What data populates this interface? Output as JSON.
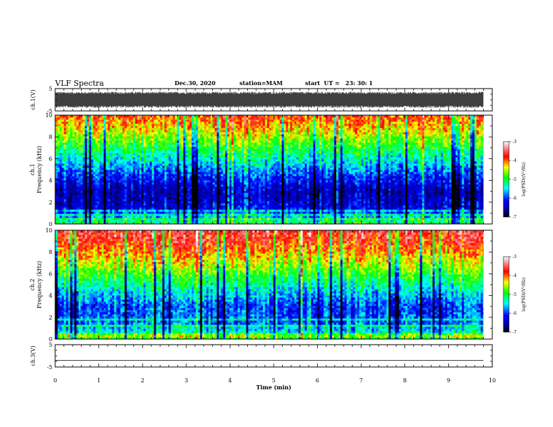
{
  "header": {
    "title": "VLF Spectra",
    "date": "Dec.30, 2020",
    "station": "station=MAM",
    "start": "start  UT =   23: 30: 1"
  },
  "chart_data": [
    {
      "type": "line",
      "panel": "waveform-ch1",
      "ylabel": "ch.1(V)",
      "ylim": [
        -5,
        5
      ],
      "yticks": [
        "5",
        "-5"
      ],
      "xlim": [
        0,
        10
      ],
      "x_extent_min": 9.8,
      "note_values": "noisy waveform filling approx -3.5 to 3.5 V"
    },
    {
      "type": "heatmap",
      "panel": "spectrogram-ch1",
      "ylabel": "ch.1\nFrequency (kHz)",
      "ylabel_line1": "ch.1",
      "ylabel_line2": "Frequency (kHz)",
      "ylim": [
        0,
        10
      ],
      "yticks": [
        "0",
        "2",
        "4",
        "6",
        "8",
        "10"
      ],
      "xlim": [
        0,
        10
      ],
      "x_extent_min": 9.8,
      "level_profile": [
        {
          "f_khz": 0.0,
          "log_psd": -4.9
        },
        {
          "f_khz": 0.5,
          "log_psd": -5.5
        },
        {
          "f_khz": 1.5,
          "log_psd": -6.3
        },
        {
          "f_khz": 3.0,
          "log_psd": -6.5
        },
        {
          "f_khz": 4.5,
          "log_psd": -6.0
        },
        {
          "f_khz": 6.0,
          "log_psd": -5.4
        },
        {
          "f_khz": 7.5,
          "log_psd": -4.8
        },
        {
          "f_khz": 9.0,
          "log_psd": -4.2
        },
        {
          "f_khz": 10.0,
          "log_psd": -3.9
        }
      ],
      "colorbar": {
        "label": "log(PSD)(V²/Hz)",
        "range": [
          -7,
          -3
        ],
        "ticks": [
          "-3",
          "-4",
          "-5",
          "-6",
          "-7"
        ],
        "colormap": [
          "#000000",
          "#0000ff",
          "#00ffff",
          "#00ff00",
          "#ffff00",
          "#ff0000",
          "#ffffff"
        ]
      }
    },
    {
      "type": "heatmap",
      "panel": "spectrogram-ch2",
      "ylabel_line1": "ch.2",
      "ylabel_line2": "Frequency (kHz)",
      "ylim": [
        0,
        10
      ],
      "yticks": [
        "0",
        "2",
        "4",
        "6",
        "8",
        "10"
      ],
      "xlim": [
        0,
        10
      ],
      "x_extent_min": 9.8,
      "level_profile": [
        {
          "f_khz": 0.0,
          "log_psd": -4.8
        },
        {
          "f_khz": 0.5,
          "log_psd": -5.3
        },
        {
          "f_khz": 1.5,
          "log_psd": -5.9
        },
        {
          "f_khz": 3.0,
          "log_psd": -6.0
        },
        {
          "f_khz": 4.5,
          "log_psd": -5.5
        },
        {
          "f_khz": 6.0,
          "log_psd": -4.9
        },
        {
          "f_khz": 7.5,
          "log_psd": -4.3
        },
        {
          "f_khz": 9.0,
          "log_psd": -3.8
        },
        {
          "f_khz": 10.0,
          "log_psd": -3.6
        }
      ],
      "colorbar": {
        "label": "log(PSD)(V²/Hz)",
        "range": [
          -7,
          -3
        ],
        "ticks": [
          "-3",
          "-4",
          "-5",
          "-6",
          "-7"
        ],
        "colormap": [
          "#000000",
          "#0000ff",
          "#00ffff",
          "#00ff00",
          "#ffff00",
          "#ff0000",
          "#ffffff"
        ]
      }
    },
    {
      "type": "line",
      "panel": "waveform-ch3",
      "ylabel": "ch.3(V)",
      "ylim": [
        -5,
        5
      ],
      "yticks": [
        "5",
        "-5"
      ],
      "xlim": [
        0,
        10
      ],
      "x_extent_min": 9.8,
      "x": [
        0,
        9.8
      ],
      "y": [
        -2,
        -2
      ]
    }
  ],
  "xaxis": {
    "label": "Time (min)",
    "ticks": [
      "0",
      "1",
      "2",
      "3",
      "4",
      "5",
      "6",
      "7",
      "8",
      "9",
      "10"
    ]
  }
}
